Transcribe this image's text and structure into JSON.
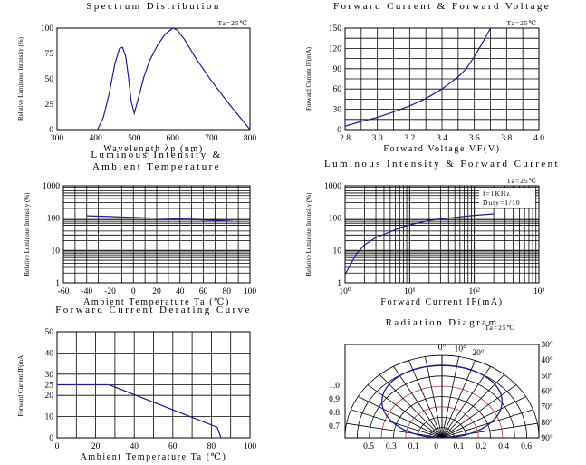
{
  "chart_data": [
    {
      "id": "spectrum",
      "type": "line",
      "title": "Spectrum Distribution",
      "note": "Ta=25℃",
      "xlabel": "Wavelength λp (nm)",
      "ylabel": "Relative Luminous Intensity (%)",
      "xlim": [
        300,
        800
      ],
      "ylim": [
        0,
        100
      ],
      "xticks": [
        "300",
        "400",
        "500",
        "600",
        "700",
        "800"
      ],
      "yticks": [
        "0",
        "25",
        "50",
        "75",
        "100"
      ],
      "grid": false,
      "color": "#1c1c8c",
      "series": [
        {
          "x": [
            405,
            420,
            435,
            450,
            462,
            470,
            478,
            485,
            492,
            500,
            510,
            525,
            540,
            560,
            580,
            600,
            612,
            630,
            660,
            700,
            740,
            770,
            800
          ],
          "values": [
            0,
            12,
            35,
            65,
            80,
            81,
            72,
            52,
            28,
            16,
            30,
            52,
            68,
            83,
            94,
            100,
            98,
            89,
            70,
            48,
            28,
            14,
            0
          ]
        }
      ]
    },
    {
      "id": "fwd-current-voltage",
      "type": "line",
      "title": "Forward Current & Forward Voltage",
      "note": "Ta=25℃",
      "xlabel": "Forward Voltage VF(V)",
      "ylabel": "Forward Current IF(mA)",
      "xlim": [
        2.8,
        4.0
      ],
      "ylim": [
        0,
        150
      ],
      "xticks": [
        "2.8",
        "3.0",
        "3.2",
        "3.4",
        "3.6",
        "3.8",
        "4.0"
      ],
      "yticks": [
        "0",
        "30",
        "60",
        "90",
        "120",
        "150"
      ],
      "grid": true,
      "color": "#1c1c8c",
      "series": [
        {
          "x": [
            2.8,
            2.9,
            3.0,
            3.1,
            3.2,
            3.3,
            3.4,
            3.5,
            3.55,
            3.6,
            3.65,
            3.7
          ],
          "values": [
            5,
            12,
            18,
            26,
            35,
            46,
            60,
            78,
            90,
            108,
            128,
            150
          ]
        }
      ]
    },
    {
      "id": "intensity-ambient",
      "type": "line",
      "title": [
        "Luminous Intensity &",
        "Ambient Temperature"
      ],
      "xlabel": "Ambient Temperature Ta (℃)",
      "ylabel": "Relative Luminous Intensity (%)",
      "xlim": [
        -60,
        100
      ],
      "ylim": [
        1,
        1000
      ],
      "yscale": "log",
      "xticks": [
        "-60",
        "-40",
        "-20",
        "0",
        "20",
        "40",
        "60",
        "80",
        "100"
      ],
      "yticks": [
        "1",
        "10",
        "100",
        "1000"
      ],
      "grid": true,
      "color": "#1c1c8c",
      "series": [
        {
          "x": [
            -40,
            -20,
            0,
            20,
            40,
            60,
            85
          ],
          "values": [
            118,
            112,
            106,
            100,
            94,
            88,
            80
          ]
        }
      ]
    },
    {
      "id": "intensity-current",
      "type": "line",
      "title": "Luminous Intensity & Forward Current",
      "note": "Ta=25℃",
      "annotation": [
        "f=1KHz",
        "Duty=1/10"
      ],
      "xlabel": "Forward Current IF(mA)",
      "ylabel": "Relative Luminous Intensity (%)",
      "xlim": [
        1,
        1000
      ],
      "ylim": [
        1,
        1000
      ],
      "xscale": "log",
      "yscale": "log",
      "xticks": [
        "10⁰",
        "10¹",
        "10²",
        "10³"
      ],
      "yticks": [
        "1",
        "10",
        "100",
        "1000"
      ],
      "grid": true,
      "color": "#1c1c8c",
      "series": [
        {
          "x": [
            1,
            1.5,
            2,
            3,
            5,
            8,
            10,
            20,
            50,
            100,
            200
          ],
          "values": [
            1.8,
            8,
            15,
            25,
            38,
            55,
            62,
            85,
            105,
            122,
            135
          ]
        }
      ]
    },
    {
      "id": "derating",
      "type": "line",
      "title": "Forward Current Derating Curve",
      "xlabel": "Ambient Temperature Ta (℃)",
      "ylabel": "Forward Current IF(mA)",
      "xlim": [
        0,
        100
      ],
      "ylim": [
        0,
        50
      ],
      "xticks": [
        "0",
        "20",
        "40",
        "60",
        "80",
        "100"
      ],
      "yticks": [
        "0",
        "10",
        "20",
        "25",
        "30",
        "40",
        "50"
      ],
      "grid": true,
      "color": "#1c1c8c",
      "series": [
        {
          "x": [
            0,
            27,
            83,
            85
          ],
          "values": [
            25,
            25,
            5,
            0
          ]
        }
      ]
    },
    {
      "id": "radiation",
      "type": "polar",
      "title": "Radiation Diagram",
      "note": "Ta=25℃",
      "angles": [
        0,
        10,
        20,
        30,
        40,
        50,
        60,
        70,
        80,
        90
      ],
      "angle_labels": [
        "0°",
        "10°",
        "20°",
        "30°",
        "40°",
        "50°",
        "60°",
        "70°",
        "80°",
        "90°"
      ],
      "radial_labels": [
        "1.0",
        "0.9",
        "0.8",
        "0.7"
      ],
      "bottom_labels": [
        "0.5",
        "0.3",
        "0.1",
        "0",
        "0.1",
        "0.2",
        "0.4",
        "0.6"
      ],
      "color": "#1c1c8c"
    }
  ]
}
